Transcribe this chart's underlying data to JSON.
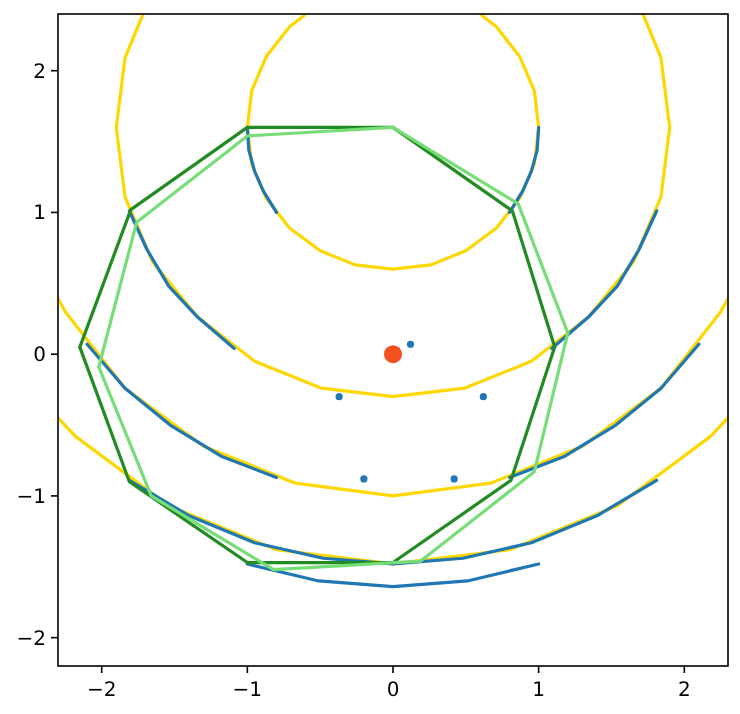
{
  "chart_data": {
    "type": "line",
    "xlim": [
      -2.3,
      2.3
    ],
    "ylim": [
      -2.2,
      2.4
    ],
    "xticks": [
      {
        "value": -2,
        "label": "−2"
      },
      {
        "value": -1,
        "label": "−1"
      },
      0,
      1,
      2
    ],
    "yticks": [
      {
        "value": -2,
        "label": "−2"
      },
      {
        "value": -1,
        "label": "−1"
      },
      0,
      1,
      2
    ],
    "grid": false,
    "series": [
      {
        "color": "#ffd700",
        "x": [
          0.61,
          0.71,
          0.87,
          0.97,
          1,
          0.97,
          0.87,
          0.71,
          0.5,
          0.26,
          0,
          -0.26,
          -0.5,
          -0.71,
          -0.87,
          -0.97,
          -1,
          -0.97,
          -0.87,
          -0.71,
          -0.61
        ],
        "values": [
          2.39,
          2.31,
          2.1,
          1.86,
          1.6,
          1.34,
          1.1,
          0.89,
          0.73,
          0.63,
          0.6,
          0.63,
          0.73,
          0.89,
          1.1,
          1.34,
          1.6,
          1.86,
          2.1,
          2.31,
          2.39
        ]
      },
      {
        "color": "#ffd700",
        "x": [
          1.72,
          1.84,
          1.9,
          1.84,
          1.65,
          1.34,
          0.95,
          0.49,
          0,
          -0.49,
          -0.95,
          -1.34,
          -1.65,
          -1.84,
          -1.9,
          -1.84,
          -1.72
        ],
        "values": [
          2.39,
          2.09,
          1.6,
          1.11,
          0.65,
          0.26,
          -0.05,
          -0.24,
          -0.3,
          -0.24,
          -0.05,
          0.26,
          0.65,
          1.11,
          1.6,
          2.09,
          2.39
        ]
      },
      {
        "color": "#ffd700",
        "x": [
          2.3,
          2.25,
          1.84,
          1.3,
          0.67,
          0,
          -0.67,
          -1.3,
          -1.84,
          -2.25,
          -2.3
        ],
        "values": [
          0.39,
          0.3,
          -0.24,
          -0.65,
          -0.91,
          -1.0,
          -0.91,
          -0.65,
          -0.24,
          0.3,
          0.39
        ]
      },
      {
        "color": "#ffd700",
        "x": [
          2.3,
          2.18,
          1.54,
          0.8,
          0,
          -0.8,
          -1.54,
          -2.18,
          -2.3
        ],
        "values": [
          -0.45,
          -0.58,
          -1.07,
          -1.38,
          -1.48,
          -1.38,
          -1.07,
          -0.58,
          -0.45
        ]
      },
      {
        "color": "#1f77b4",
        "x": [
          -1,
          -0.99,
          -0.95,
          -0.89,
          -0.8
        ],
        "values": [
          1.6,
          1.44,
          1.29,
          1.15,
          1.0
        ]
      },
      {
        "color": "#1f77b4",
        "x": [
          1,
          0.99,
          0.95,
          0.89,
          0.8
        ],
        "values": [
          1.6,
          1.44,
          1.29,
          1.15,
          1.0
        ]
      },
      {
        "color": "#1f77b4",
        "x": [
          -1.81,
          -1.69,
          -1.54,
          -1.34,
          -1.09
        ],
        "values": [
          1.01,
          0.74,
          0.48,
          0.26,
          0.04
        ]
      },
      {
        "color": "#1f77b4",
        "x": [
          1.81,
          1.69,
          1.54,
          1.34,
          1.09
        ],
        "values": [
          1.01,
          0.74,
          0.48,
          0.26,
          0.04
        ]
      },
      {
        "color": "#1f77b4",
        "x": [
          -2.1,
          -1.84,
          -1.53,
          -1.18,
          -0.8
        ],
        "values": [
          0.07,
          -0.24,
          -0.5,
          -0.72,
          -0.87
        ]
      },
      {
        "color": "#1f77b4",
        "x": [
          2.1,
          1.84,
          1.53,
          1.18,
          0.8
        ],
        "values": [
          0.07,
          -0.24,
          -0.5,
          -0.72,
          -0.87
        ]
      },
      {
        "color": "#1f77b4",
        "x": [
          -1.81,
          -1.4,
          -0.95,
          -0.48,
          0,
          0.48,
          0.95,
          1.4,
          1.81
        ],
        "values": [
          -0.89,
          -1.14,
          -1.33,
          -1.44,
          -1.48,
          -1.44,
          -1.33,
          -1.14,
          -0.89
        ]
      },
      {
        "color": "#1f77b4",
        "x": [
          -1,
          -0.51,
          0,
          0.51,
          1
        ],
        "values": [
          -1.48,
          -1.6,
          -1.64,
          -1.6,
          -1.48
        ]
      },
      {
        "color": "#228b22",
        "x": [
          -2.15,
          -1.8,
          -1,
          0,
          0.82,
          1.11
        ],
        "values": [
          0.05,
          1.02,
          1.6,
          1.6,
          1.01,
          0.05
        ]
      },
      {
        "color": "#228b22",
        "x": [
          -2.15,
          -1.81,
          -1,
          0,
          0.81,
          1.11
        ],
        "values": [
          0.05,
          -0.9,
          -1.47,
          -1.47,
          -0.89,
          0.05
        ]
      },
      {
        "color": "#77dd77",
        "x": [
          -2.02,
          -1.76,
          -1,
          0,
          0.86,
          1.2
        ],
        "values": [
          -0.09,
          0.93,
          1.54,
          1.6,
          1.06,
          0.15
        ]
      },
      {
        "color": "#77dd77",
        "x": [
          -2.02,
          -1.66,
          -0.82,
          0.19,
          0.97,
          1.2
        ],
        "values": [
          -0.09,
          -1.0,
          -1.52,
          -1.46,
          -0.83,
          0.15
        ]
      },
      {
        "type": "scatter",
        "color": "#1f77b4",
        "marker": "circle",
        "x": [
          0.12,
          -0.37,
          0.62,
          -0.2,
          0.42
        ],
        "values": [
          0.07,
          -0.3,
          -0.3,
          -0.88,
          -0.88
        ]
      },
      {
        "type": "scatter",
        "color": "#f4511e",
        "marker": "circle",
        "x": [
          0
        ],
        "values": [
          0
        ]
      }
    ]
  }
}
